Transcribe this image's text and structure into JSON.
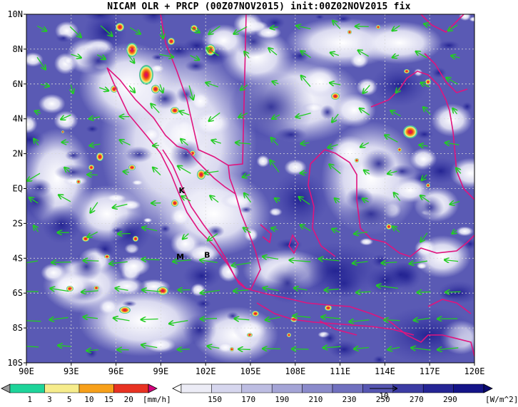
{
  "title": "NICAM OLR + PRCP (00Z07NOV2015) init:00Z02NOV2015 fix",
  "map": {
    "lon_range": [
      90,
      120
    ],
    "lat_range": [
      -10,
      10
    ],
    "grid": true,
    "lon_ticks": [
      "90E",
      "93E",
      "96E",
      "99E",
      "102E",
      "105E",
      "108E",
      "111E",
      "114E",
      "117E",
      "120E"
    ],
    "lat_ticks": [
      "10N",
      "8N",
      "6N",
      "4N",
      "2N",
      "EQ",
      "2S",
      "4S",
      "6S",
      "8S",
      "10S"
    ],
    "coastline_color": "#e0147e",
    "wind_vector_color": "#22cc22",
    "markers": [
      {
        "label": "K",
        "lon": 100.4,
        "lat": -0.1
      },
      {
        "label": "M",
        "lon": 100.3,
        "lat": -3.9
      },
      {
        "label": "B",
        "lon": 102.1,
        "lat": -3.8
      }
    ],
    "reference_vector_label": "10"
  },
  "prcp_colorbar": {
    "ticks": [
      "1",
      "3",
      "5",
      "10",
      "15",
      "20"
    ],
    "unit": "[mm/h]",
    "colors": [
      "#9c9c9c",
      "#1ed49a",
      "#f6ec8c",
      "#f7a01a",
      "#e83222",
      "#d4007e"
    ]
  },
  "olr_colorbar": {
    "ticks": [
      "150",
      "170",
      "190",
      "210",
      "230",
      "250",
      "270",
      "290"
    ],
    "unit": "[W/m^2]",
    "colors": [
      "#ffffff",
      "#ececf6",
      "#d6d6ee",
      "#bdbde2",
      "#a4a4d6",
      "#8a8acb",
      "#7070bf",
      "#5656b2",
      "#3c3ca4",
      "#252595",
      "#141488",
      "#0a0a70"
    ]
  }
}
